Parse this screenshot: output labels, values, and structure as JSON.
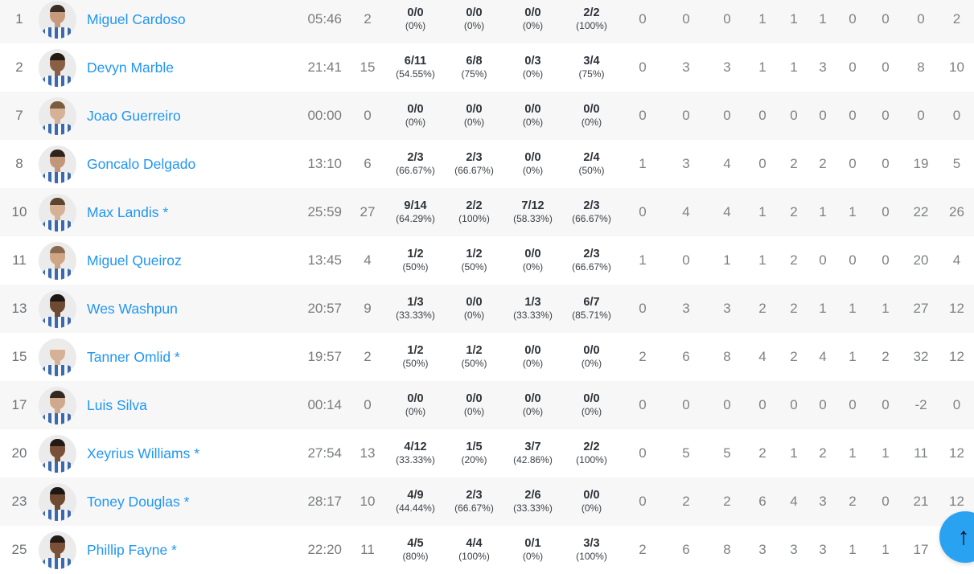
{
  "colors": {
    "link_blue": "#2196f3",
    "row_alt_gray": "#f7f7f7",
    "button_blue": "#29a3f1",
    "stat_gray": "#7e8285",
    "frac_dark": "#2d3238"
  },
  "scroll_top": {
    "icon": "arrow-up-icon",
    "glyph": "↑"
  },
  "table": {
    "rows": [
      {
        "num": "1",
        "name": "Miguel Cardoso",
        "min": "05:46",
        "pts": "2",
        "shooting": [
          {
            "value": "0/0",
            "pct": "(0%)"
          },
          {
            "value": "0/0",
            "pct": "(0%)"
          },
          {
            "value": "0/0",
            "pct": "(0%)"
          },
          {
            "value": "2/2",
            "pct": "(100%)"
          }
        ],
        "stats": [
          "0",
          "0",
          "0",
          "1",
          "1",
          "1",
          "0",
          "0",
          "0",
          "2"
        ],
        "avatar": {
          "skin": "#c69b7d",
          "hair": "#3a2d24"
        }
      },
      {
        "num": "2",
        "name": "Devyn Marble",
        "min": "21:41",
        "pts": "15",
        "shooting": [
          {
            "value": "6/11",
            "pct": "(54.55%)"
          },
          {
            "value": "6/8",
            "pct": "(75%)"
          },
          {
            "value": "0/3",
            "pct": "(0%)"
          },
          {
            "value": "3/4",
            "pct": "(75%)"
          }
        ],
        "stats": [
          "0",
          "3",
          "3",
          "1",
          "1",
          "3",
          "0",
          "0",
          "8",
          "10"
        ],
        "avatar": {
          "skin": "#8a6044",
          "hair": "#241b15"
        }
      },
      {
        "num": "7",
        "name": "Joao Guerreiro",
        "min": "00:00",
        "pts": "0",
        "shooting": [
          {
            "value": "0/0",
            "pct": "(0%)"
          },
          {
            "value": "0/0",
            "pct": "(0%)"
          },
          {
            "value": "0/0",
            "pct": "(0%)"
          },
          {
            "value": "0/0",
            "pct": "(0%)"
          }
        ],
        "stats": [
          "0",
          "0",
          "0",
          "0",
          "0",
          "0",
          "0",
          "0",
          "0",
          "0"
        ],
        "avatar": {
          "skin": "#d6b196",
          "hair": "#7a5c3e"
        }
      },
      {
        "num": "8",
        "name": "Goncalo Delgado",
        "min": "13:10",
        "pts": "6",
        "shooting": [
          {
            "value": "2/3",
            "pct": "(66.67%)"
          },
          {
            "value": "2/3",
            "pct": "(66.67%)"
          },
          {
            "value": "0/0",
            "pct": "(0%)"
          },
          {
            "value": "2/4",
            "pct": "(50%)"
          }
        ],
        "stats": [
          "1",
          "3",
          "4",
          "0",
          "2",
          "2",
          "0",
          "0",
          "19",
          "5"
        ],
        "avatar": {
          "skin": "#c29678",
          "hair": "#2e241d"
        }
      },
      {
        "num": "10",
        "name": "Max Landis *",
        "min": "25:59",
        "pts": "27",
        "shooting": [
          {
            "value": "9/14",
            "pct": "(64.29%)"
          },
          {
            "value": "2/2",
            "pct": "(100%)"
          },
          {
            "value": "7/12",
            "pct": "(58.33%)"
          },
          {
            "value": "2/3",
            "pct": "(66.67%)"
          }
        ],
        "stats": [
          "0",
          "4",
          "4",
          "1",
          "2",
          "1",
          "1",
          "0",
          "22",
          "26"
        ],
        "avatar": {
          "skin": "#d6b196",
          "hair": "#5d4630"
        }
      },
      {
        "num": "11",
        "name": "Miguel Queiroz",
        "min": "13:45",
        "pts": "4",
        "shooting": [
          {
            "value": "1/2",
            "pct": "(50%)"
          },
          {
            "value": "1/2",
            "pct": "(50%)"
          },
          {
            "value": "0/0",
            "pct": "(0%)"
          },
          {
            "value": "2/3",
            "pct": "(66.67%)"
          }
        ],
        "stats": [
          "1",
          "0",
          "1",
          "1",
          "2",
          "0",
          "0",
          "0",
          "20",
          "4"
        ],
        "avatar": {
          "skin": "#cfa685",
          "hair": "#8a6a4e"
        }
      },
      {
        "num": "13",
        "name": "Wes Washpun",
        "min": "20:57",
        "pts": "9",
        "shooting": [
          {
            "value": "1/3",
            "pct": "(33.33%)"
          },
          {
            "value": "0/0",
            "pct": "(0%)"
          },
          {
            "value": "1/3",
            "pct": "(33.33%)"
          },
          {
            "value": "6/7",
            "pct": "(85.71%)"
          }
        ],
        "stats": [
          "0",
          "3",
          "3",
          "2",
          "2",
          "1",
          "1",
          "1",
          "27",
          "12"
        ],
        "avatar": {
          "skin": "#6e4a32",
          "hair": "#1d1713"
        }
      },
      {
        "num": "15",
        "name": "Tanner Omlid *",
        "min": "19:57",
        "pts": "2",
        "shooting": [
          {
            "value": "1/2",
            "pct": "(50%)"
          },
          {
            "value": "1/2",
            "pct": "(50%)"
          },
          {
            "value": "0/0",
            "pct": "(0%)"
          },
          {
            "value": "0/0",
            "pct": "(0%)"
          }
        ],
        "stats": [
          "2",
          "6",
          "8",
          "4",
          "2",
          "4",
          "1",
          "2",
          "32",
          "12"
        ],
        "avatar": {
          "skin": "#d6b196",
          "hair": "#efece7"
        }
      },
      {
        "num": "17",
        "name": "Luis Silva",
        "min": "00:14",
        "pts": "0",
        "shooting": [
          {
            "value": "0/0",
            "pct": "(0%)"
          },
          {
            "value": "0/0",
            "pct": "(0%)"
          },
          {
            "value": "0/0",
            "pct": "(0%)"
          },
          {
            "value": "0/0",
            "pct": "(0%)"
          }
        ],
        "stats": [
          "0",
          "0",
          "0",
          "0",
          "0",
          "0",
          "0",
          "0",
          "-2",
          "0"
        ],
        "avatar": {
          "skin": "#d0a98c",
          "hair": "#332821"
        }
      },
      {
        "num": "20",
        "name": "Xeyrius Williams *",
        "min": "27:54",
        "pts": "13",
        "shooting": [
          {
            "value": "4/12",
            "pct": "(33.33%)"
          },
          {
            "value": "1/5",
            "pct": "(20%)"
          },
          {
            "value": "3/7",
            "pct": "(42.86%)"
          },
          {
            "value": "2/2",
            "pct": "(100%)"
          }
        ],
        "stats": [
          "0",
          "5",
          "5",
          "2",
          "1",
          "2",
          "1",
          "1",
          "11",
          "12"
        ],
        "avatar": {
          "skin": "#7a5138",
          "hair": "#221a15"
        }
      },
      {
        "num": "23",
        "name": "Toney Douglas *",
        "min": "28:17",
        "pts": "10",
        "shooting": [
          {
            "value": "4/9",
            "pct": "(44.44%)"
          },
          {
            "value": "2/3",
            "pct": "(66.67%)"
          },
          {
            "value": "2/6",
            "pct": "(33.33%)"
          },
          {
            "value": "0/0",
            "pct": "(0%)"
          }
        ],
        "stats": [
          "0",
          "2",
          "2",
          "6",
          "4",
          "3",
          "2",
          "0",
          "21",
          "12"
        ],
        "avatar": {
          "skin": "#6e4a32",
          "hair": "#1d1713"
        }
      },
      {
        "num": "25",
        "name": "Phillip Fayne *",
        "min": "22:20",
        "pts": "11",
        "shooting": [
          {
            "value": "4/5",
            "pct": "(80%)"
          },
          {
            "value": "4/4",
            "pct": "(100%)"
          },
          {
            "value": "0/1",
            "pct": "(0%)"
          },
          {
            "value": "3/3",
            "pct": "(100%)"
          }
        ],
        "stats": [
          "2",
          "6",
          "8",
          "3",
          "3",
          "3",
          "1",
          "1",
          "17",
          ""
        ],
        "avatar": {
          "skin": "#7a5138",
          "hair": "#221a15"
        }
      }
    ]
  }
}
